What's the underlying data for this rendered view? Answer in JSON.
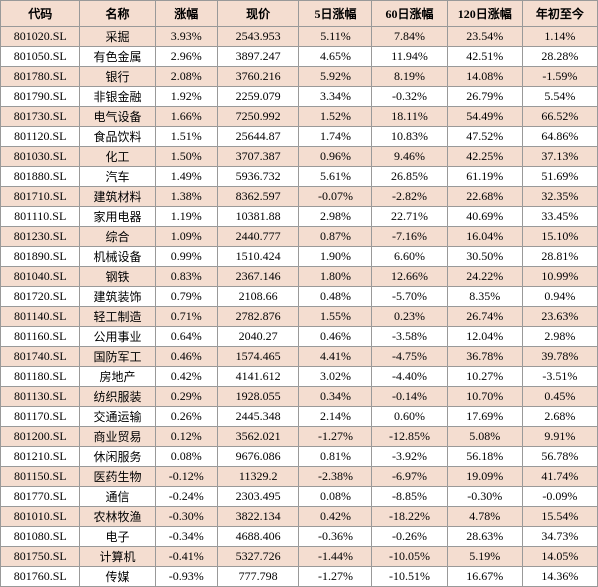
{
  "table": {
    "header_bg": "#f4ddd0",
    "odd_row_bg": "#f4ddd0",
    "even_row_bg": "#ffffff",
    "border_color": "#999999",
    "font_size": 12,
    "columns": [
      {
        "key": "code",
        "label": "代码",
        "width": 74
      },
      {
        "key": "name",
        "label": "名称",
        "width": 70
      },
      {
        "key": "change",
        "label": "涨幅",
        "width": 58
      },
      {
        "key": "price",
        "label": "现价",
        "width": 76
      },
      {
        "key": "d5",
        "label": "5日涨幅",
        "width": 68
      },
      {
        "key": "d60",
        "label": "60日涨幅",
        "width": 70
      },
      {
        "key": "d120",
        "label": "120日涨幅",
        "width": 70
      },
      {
        "key": "ytd",
        "label": "年初至今",
        "width": 70
      }
    ],
    "rows": [
      {
        "code": "801020.SL",
        "name": "采掘",
        "change": "3.93%",
        "price": "2543.953",
        "d5": "5.11%",
        "d60": "7.84%",
        "d120": "23.54%",
        "ytd": "1.14%"
      },
      {
        "code": "801050.SL",
        "name": "有色金属",
        "change": "2.96%",
        "price": "3897.247",
        "d5": "4.65%",
        "d60": "11.94%",
        "d120": "42.51%",
        "ytd": "28.28%"
      },
      {
        "code": "801780.SL",
        "name": "银行",
        "change": "2.08%",
        "price": "3760.216",
        "d5": "5.92%",
        "d60": "8.19%",
        "d120": "14.08%",
        "ytd": "-1.59%"
      },
      {
        "code": "801790.SL",
        "name": "非银金融",
        "change": "1.92%",
        "price": "2259.079",
        "d5": "3.34%",
        "d60": "-0.32%",
        "d120": "26.79%",
        "ytd": "5.54%"
      },
      {
        "code": "801730.SL",
        "name": "电气设备",
        "change": "1.66%",
        "price": "7250.992",
        "d5": "1.52%",
        "d60": "18.11%",
        "d120": "54.49%",
        "ytd": "66.52%"
      },
      {
        "code": "801120.SL",
        "name": "食品饮料",
        "change": "1.51%",
        "price": "25644.87",
        "d5": "1.74%",
        "d60": "10.83%",
        "d120": "47.52%",
        "ytd": "64.86%"
      },
      {
        "code": "801030.SL",
        "name": "化工",
        "change": "1.50%",
        "price": "3707.387",
        "d5": "0.96%",
        "d60": "9.46%",
        "d120": "42.25%",
        "ytd": "37.13%"
      },
      {
        "code": "801880.SL",
        "name": "汽车",
        "change": "1.49%",
        "price": "5936.732",
        "d5": "5.61%",
        "d60": "26.85%",
        "d120": "61.19%",
        "ytd": "51.69%"
      },
      {
        "code": "801710.SL",
        "name": "建筑材料",
        "change": "1.38%",
        "price": "8362.597",
        "d5": "-0.07%",
        "d60": "-2.82%",
        "d120": "22.68%",
        "ytd": "32.35%"
      },
      {
        "code": "801110.SL",
        "name": "家用电器",
        "change": "1.19%",
        "price": "10381.88",
        "d5": "2.98%",
        "d60": "22.71%",
        "d120": "40.69%",
        "ytd": "33.45%"
      },
      {
        "code": "801230.SL",
        "name": "综合",
        "change": "1.09%",
        "price": "2440.777",
        "d5": "0.87%",
        "d60": "-7.16%",
        "d120": "16.04%",
        "ytd": "15.10%"
      },
      {
        "code": "801890.SL",
        "name": "机械设备",
        "change": "0.99%",
        "price": "1510.424",
        "d5": "1.90%",
        "d60": "6.60%",
        "d120": "30.50%",
        "ytd": "28.81%"
      },
      {
        "code": "801040.SL",
        "name": "钢铁",
        "change": "0.83%",
        "price": "2367.146",
        "d5": "1.80%",
        "d60": "12.66%",
        "d120": "24.22%",
        "ytd": "10.99%"
      },
      {
        "code": "801720.SL",
        "name": "建筑装饰",
        "change": "0.79%",
        "price": "2108.66",
        "d5": "0.48%",
        "d60": "-5.70%",
        "d120": "8.35%",
        "ytd": "0.94%"
      },
      {
        "code": "801140.SL",
        "name": "轻工制造",
        "change": "0.71%",
        "price": "2782.876",
        "d5": "1.55%",
        "d60": "0.23%",
        "d120": "26.74%",
        "ytd": "23.63%"
      },
      {
        "code": "801160.SL",
        "name": "公用事业",
        "change": "0.64%",
        "price": "2040.27",
        "d5": "0.46%",
        "d60": "-3.58%",
        "d120": "12.04%",
        "ytd": "2.98%"
      },
      {
        "code": "801740.SL",
        "name": "国防军工",
        "change": "0.46%",
        "price": "1574.465",
        "d5": "4.41%",
        "d60": "-4.75%",
        "d120": "36.78%",
        "ytd": "39.78%"
      },
      {
        "code": "801180.SL",
        "name": "房地产",
        "change": "0.42%",
        "price": "4141.612",
        "d5": "3.02%",
        "d60": "-4.40%",
        "d120": "10.27%",
        "ytd": "-3.51%"
      },
      {
        "code": "801130.SL",
        "name": "纺织服装",
        "change": "0.29%",
        "price": "1928.055",
        "d5": "0.34%",
        "d60": "-0.14%",
        "d120": "10.70%",
        "ytd": "0.45%"
      },
      {
        "code": "801170.SL",
        "name": "交通运输",
        "change": "0.26%",
        "price": "2445.348",
        "d5": "2.14%",
        "d60": "0.60%",
        "d120": "17.69%",
        "ytd": "2.68%"
      },
      {
        "code": "801200.SL",
        "name": "商业贸易",
        "change": "0.12%",
        "price": "3562.021",
        "d5": "-1.27%",
        "d60": "-12.85%",
        "d120": "5.08%",
        "ytd": "9.91%"
      },
      {
        "code": "801210.SL",
        "name": "休闲服务",
        "change": "0.08%",
        "price": "9676.086",
        "d5": "0.81%",
        "d60": "-3.92%",
        "d120": "56.18%",
        "ytd": "56.78%"
      },
      {
        "code": "801150.SL",
        "name": "医药生物",
        "change": "-0.12%",
        "price": "11329.2",
        "d5": "-2.38%",
        "d60": "-6.97%",
        "d120": "19.09%",
        "ytd": "41.74%"
      },
      {
        "code": "801770.SL",
        "name": "通信",
        "change": "-0.24%",
        "price": "2303.495",
        "d5": "0.08%",
        "d60": "-8.85%",
        "d120": "-0.30%",
        "ytd": "-0.09%"
      },
      {
        "code": "801010.SL",
        "name": "农林牧渔",
        "change": "-0.30%",
        "price": "3822.134",
        "d5": "0.42%",
        "d60": "-18.22%",
        "d120": "4.78%",
        "ytd": "15.54%"
      },
      {
        "code": "801080.SL",
        "name": "电子",
        "change": "-0.34%",
        "price": "4688.406",
        "d5": "-0.36%",
        "d60": "-0.26%",
        "d120": "28.63%",
        "ytd": "34.73%"
      },
      {
        "code": "801750.SL",
        "name": "计算机",
        "change": "-0.41%",
        "price": "5327.726",
        "d5": "-1.44%",
        "d60": "-10.05%",
        "d120": "5.19%",
        "ytd": "14.05%"
      },
      {
        "code": "801760.SL",
        "name": "传媒",
        "change": "-0.93%",
        "price": "777.798",
        "d5": "-1.27%",
        "d60": "-10.51%",
        "d120": "16.67%",
        "ytd": "14.36%"
      }
    ]
  }
}
